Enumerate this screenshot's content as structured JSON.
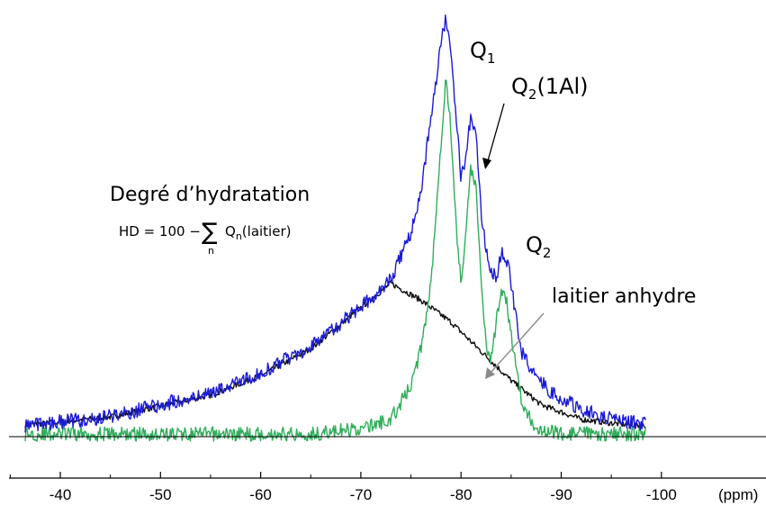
{
  "chart_data": {
    "type": "line",
    "title": "",
    "xlabel": "(ppm)",
    "ylabel": "",
    "x_reversed": true,
    "xlim": [
      -35,
      -100
    ],
    "ticks": [
      "-40",
      "-50",
      "-60",
      "-70",
      "-80",
      "-90",
      "-100"
    ],
    "tick_values": [
      -40,
      -50,
      -60,
      -70,
      -80,
      -90,
      -100
    ],
    "grid": false,
    "colors": {
      "total": "#1a1ad6",
      "hydrates": "#2fae5a",
      "anhydrous": "#111111"
    },
    "series": [
      {
        "key": "total",
        "x": [
          -35,
          -45,
          -55,
          -60,
          -65,
          -70,
          -73,
          -75,
          -76,
          -77,
          -78,
          -78.5,
          -79,
          -79.5,
          -80,
          -80.5,
          -81,
          -81.5,
          -82,
          -82.5,
          -83,
          -83.5,
          -84,
          -84.5,
          -85,
          -85.5,
          -86,
          -87,
          -89,
          -92,
          -95,
          -100,
          -110
        ],
        "y": [
          0.03,
          0.07,
          0.17,
          0.25,
          0.36,
          0.52,
          0.64,
          0.82,
          1.0,
          1.3,
          1.6,
          1.72,
          1.55,
          1.3,
          1.05,
          1.13,
          1.33,
          1.22,
          0.92,
          0.76,
          0.68,
          0.64,
          0.74,
          0.73,
          0.62,
          0.47,
          0.34,
          0.26,
          0.17,
          0.1,
          0.06,
          0.03,
          0.03
        ]
      },
      {
        "key": "hydrates",
        "x": [
          -35,
          -50,
          -65,
          -70,
          -73,
          -75,
          -76,
          -77,
          -78,
          -78.5,
          -79,
          -79.5,
          -80,
          -80.5,
          -81,
          -81.5,
          -82,
          -82.5,
          -83,
          -83.5,
          -84,
          -84.5,
          -85,
          -85.5,
          -86,
          -87,
          -88,
          -90,
          -100
        ],
        "y": [
          0,
          0,
          0,
          0.02,
          0.06,
          0.2,
          0.35,
          0.62,
          1.2,
          1.48,
          1.25,
          0.85,
          0.62,
          0.85,
          1.1,
          1.0,
          0.62,
          0.38,
          0.3,
          0.46,
          0.57,
          0.55,
          0.42,
          0.28,
          0.14,
          0.05,
          0.02,
          0,
          0
        ]
      },
      {
        "key": "anhydrous",
        "x": [
          -35,
          -45,
          -55,
          -60,
          -65,
          -70,
          -73,
          -76,
          -79,
          -82,
          -85,
          -88,
          -92,
          -96,
          -100
        ],
        "y": [
          0.03,
          0.07,
          0.16,
          0.24,
          0.35,
          0.52,
          0.62,
          0.55,
          0.46,
          0.34,
          0.22,
          0.12,
          0.06,
          0.04,
          0.03
        ]
      }
    ],
    "annotations": {
      "q1": "Q",
      "q1_sub": "1",
      "q2_1al": "Q",
      "q2_1al_sub": "2",
      "q2_1al_tail": "(1Al)",
      "q2": "Q",
      "q2_sub": "2",
      "anhydrous": "laitier anhydre",
      "hydration_title": "Degré d’hydratation",
      "formula_lhs": "HD = 100 −",
      "formula_sum": "∑",
      "formula_index": "n",
      "formula_q": "Q",
      "formula_q_sub": "n",
      "formula_paren": "(laitier)"
    }
  }
}
